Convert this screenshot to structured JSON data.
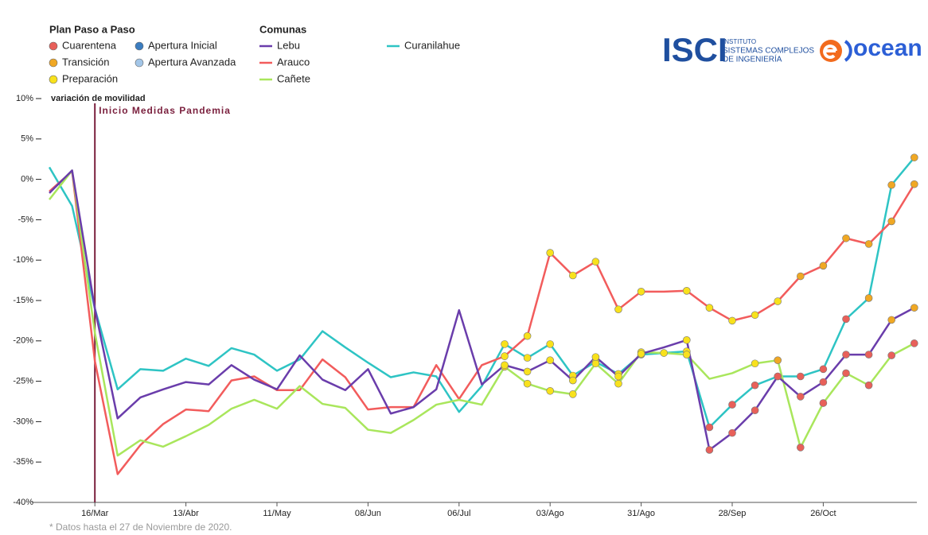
{
  "chart_data": {
    "type": "line",
    "y_axis_label": "variación de movilidad",
    "footnote": "* Datos hasta el 27 de Noviembre de 2020.",
    "phase_legend_title": "Plan Paso a Paso",
    "series_legend_title": "Comunas",
    "phases": [
      {
        "name": "Cuarentena",
        "color": "#e8605a"
      },
      {
        "name": "Apertura Inicial",
        "color": "#3b7dc0"
      },
      {
        "name": "Transición",
        "color": "#f0a824"
      },
      {
        "name": "Apertura Avanzada",
        "color": "#a3c6e8"
      },
      {
        "name": "Preparación",
        "color": "#f8e11c"
      }
    ],
    "annotations": [
      {
        "text": "Inicio Medidas Pandemia",
        "x": "16/Mar",
        "color": "#7a1f3d"
      }
    ],
    "logos": {
      "isci": "ISCI",
      "isci_line1": "INSTITUTO",
      "isci_line2": "SISTEMAS COMPLEJOS",
      "isci_line3": "DE INGENIERÍA",
      "ocean": "ocean"
    },
    "categories": [
      null,
      null,
      "16/Mar",
      null,
      null,
      null,
      "13/Abr",
      null,
      null,
      null,
      "11/May",
      null,
      null,
      null,
      "08/Jun",
      null,
      null,
      null,
      "06/Jul",
      null,
      null,
      null,
      "03/Ago",
      null,
      null,
      null,
      "31/Ago",
      null,
      null,
      null,
      "28/Sep",
      null,
      null,
      null,
      "26/Oct",
      null,
      null,
      null,
      null
    ],
    "ylim": [
      -40,
      10
    ],
    "yticks": [
      {
        "value": -40,
        "label": "-40%"
      },
      {
        "value": -35,
        "label": "-35%"
      },
      {
        "value": -30,
        "label": "-30%"
      },
      {
        "value": -25,
        "label": "-25%"
      },
      {
        "value": -20,
        "label": "-20%"
      },
      {
        "value": -15,
        "label": "-15%"
      },
      {
        "value": -10,
        "label": "-10%"
      },
      {
        "value": -5,
        "label": "-5%"
      },
      {
        "value": 0,
        "label": "0%"
      },
      {
        "value": 5,
        "label": "5%"
      },
      {
        "value": 10,
        "label": "10%"
      }
    ],
    "series": [
      {
        "name": "Curanilahue",
        "color": "#2ec4c4",
        "values": [
          1.5,
          -3.3,
          -16,
          -26,
          -23.5,
          -23.7,
          -22.2,
          -23.1,
          -20.9,
          -21.7,
          -23.7,
          -22.3,
          -18.8,
          -20.8,
          -22.7,
          -24.5,
          -23.9,
          -24.4,
          -28.8,
          -25.6,
          -20.4,
          -22.1,
          -20.4,
          -24.3,
          -22.6,
          -24.1,
          -21.7,
          -21.5,
          -21.3,
          -30.7,
          -27.9,
          -25.5,
          -24.4,
          -24.4,
          -23.5,
          -17.3,
          -14.7,
          -0.7,
          2.7
        ],
        "phase": [
          null,
          null,
          null,
          null,
          null,
          null,
          null,
          null,
          null,
          null,
          null,
          null,
          null,
          null,
          null,
          null,
          null,
          null,
          null,
          null,
          "Preparación",
          "Preparación",
          "Preparación",
          "Preparación",
          "Preparación",
          "Preparación",
          "Preparación",
          "Preparación",
          "Preparación",
          "Cuarentena",
          "Cuarentena",
          "Cuarentena",
          "Cuarentena",
          "Cuarentena",
          "Cuarentena",
          "Cuarentena",
          "Transición",
          "Transición",
          "Transición"
        ]
      },
      {
        "name": "Arauco",
        "color": "#f25c5c",
        "values": [
          -1.5,
          1.0,
          -22.5,
          -36.5,
          -32.9,
          -30.3,
          -28.5,
          -28.7,
          -24.9,
          -24.4,
          -26.1,
          -26.1,
          -22.3,
          -24.5,
          -28.5,
          -28.2,
          -28.2,
          -23,
          -27.2,
          -23.0,
          -21.9,
          -19.4,
          -9.1,
          -11.9,
          -10.2,
          -16.1,
          -13.9,
          -13.9,
          -13.8,
          -15.9,
          -17.5,
          -16.8,
          -15.1,
          -12.0,
          -10.7,
          -7.3,
          -8.0,
          -5.2,
          -0.6
        ],
        "phase": [
          null,
          null,
          null,
          null,
          null,
          null,
          null,
          null,
          null,
          null,
          null,
          null,
          null,
          null,
          null,
          null,
          null,
          null,
          null,
          null,
          "Preparación",
          "Preparación",
          "Preparación",
          "Preparación",
          "Preparación",
          "Preparación",
          "Preparación",
          null,
          "Preparación",
          "Preparación",
          "Preparación",
          "Preparación",
          "Preparación",
          "Transición",
          "Transición",
          "Transición",
          "Transición",
          "Transición",
          "Transición"
        ]
      },
      {
        "name": "Cañete",
        "color": "#a9e65c",
        "values": [
          -2.5,
          1.1,
          -19,
          -34.2,
          -32.3,
          -33.1,
          -31.8,
          -30.4,
          -28.4,
          -27.3,
          -28.4,
          -25.6,
          -27.8,
          -28.3,
          -31.0,
          -31.4,
          -29.8,
          -27.9,
          -27.3,
          -27.9,
          -23.2,
          -25.3,
          -26.2,
          -26.6,
          -22.8,
          -25.3,
          -21.4,
          -21.5,
          -21.7,
          -24.7,
          -24.0,
          -22.8,
          -22.4,
          -33.2,
          -27.7,
          -24.0,
          -25.5,
          -21.8,
          -20.3
        ],
        "phase": [
          null,
          null,
          null,
          null,
          null,
          null,
          null,
          null,
          null,
          null,
          null,
          null,
          null,
          null,
          null,
          null,
          null,
          null,
          null,
          null,
          "Preparación",
          "Preparación",
          "Preparación",
          "Preparación",
          "Preparación",
          "Preparación",
          "Preparación",
          null,
          "Preparación",
          null,
          null,
          "Preparación",
          "Transición",
          "Cuarentena",
          "Cuarentena",
          "Cuarentena",
          "Cuarentena",
          "Cuarentena",
          "Cuarentena"
        ]
      },
      {
        "name": "Lebu",
        "color": "#6a3dab",
        "values": [
          -1.7,
          1.1,
          -16,
          -29.6,
          -27,
          -26,
          -25.1,
          -25.4,
          -23,
          -24.8,
          -26,
          -21.8,
          -24.8,
          -26.1,
          -23.5,
          -29,
          -28.2,
          -26,
          -16.2,
          -25.4,
          -23.0,
          -23.8,
          -22.4,
          -24.9,
          -22.0,
          -24.4,
          -21.6,
          -20.8,
          -19.9,
          -33.5,
          -31.4,
          -28.6,
          -24.4,
          -26.9,
          -25.1,
          -21.7,
          -21.7,
          -17.4,
          -15.9
        ],
        "phase": [
          null,
          null,
          null,
          null,
          null,
          null,
          null,
          null,
          null,
          null,
          null,
          null,
          null,
          null,
          null,
          null,
          null,
          null,
          null,
          null,
          "Preparación",
          "Preparación",
          "Preparación",
          "Preparación",
          "Preparación",
          "Preparación",
          "Preparación",
          null,
          "Preparación",
          "Cuarentena",
          "Cuarentena",
          "Cuarentena",
          "Cuarentena",
          "Cuarentena",
          "Cuarentena",
          "Cuarentena",
          "Cuarentena",
          "Transición",
          "Transición"
        ]
      }
    ],
    "legend_series_order": [
      "Lebu",
      "Arauco",
      "Cañete",
      "Curanilahue"
    ]
  }
}
